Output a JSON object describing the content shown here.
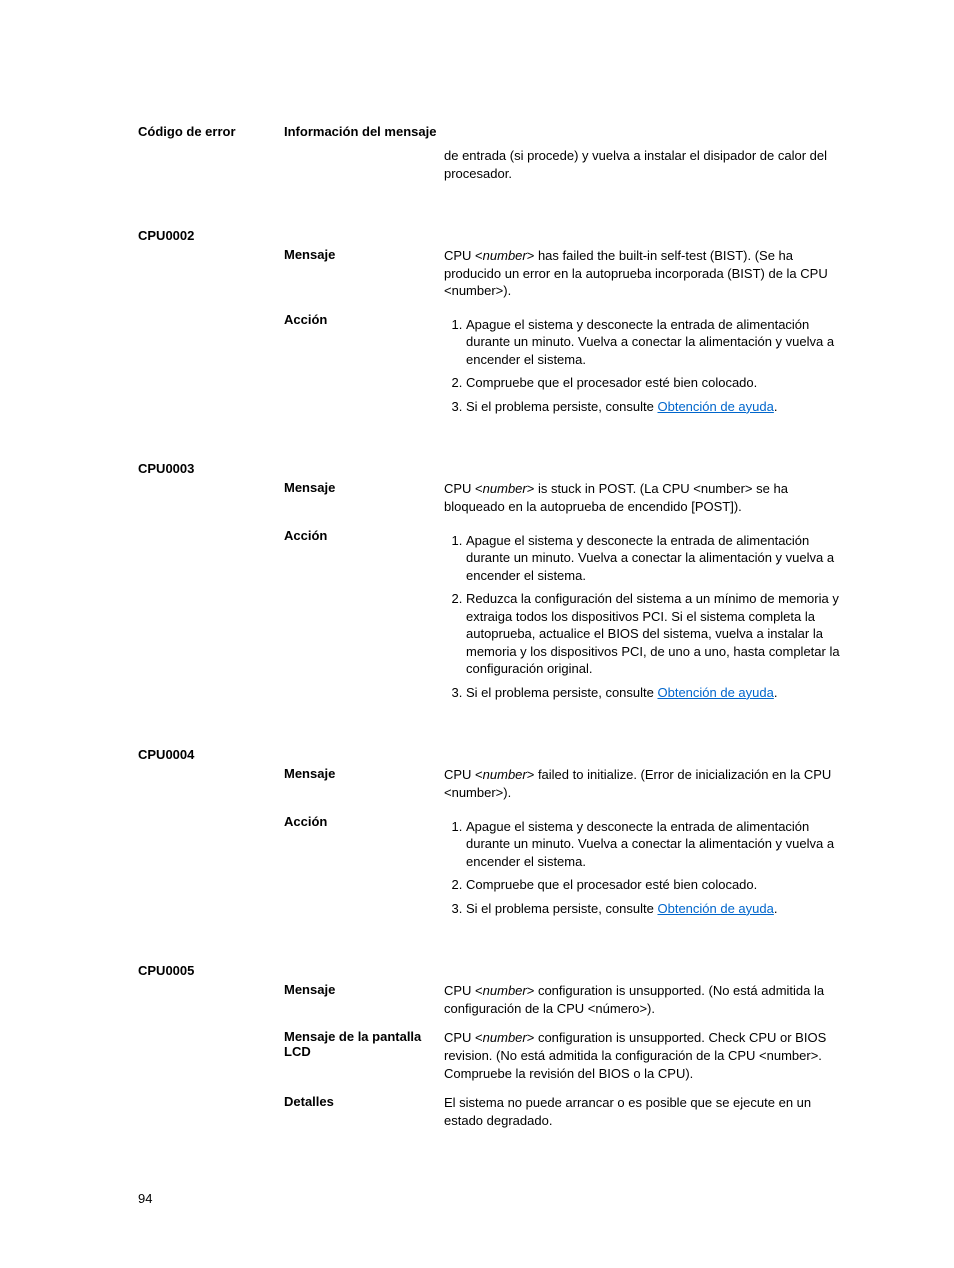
{
  "header": {
    "error_code": "Código de error",
    "message_info": "Información del mensaje"
  },
  "labels": {
    "mensaje": "Mensaje",
    "accion": "Acción",
    "lcd": "Mensaje de la pantalla LCD",
    "detalles": "Detalles"
  },
  "trailing": "de entrada (si procede) y vuelva a instalar el disipador de calor del procesador.",
  "help_link": "Obtención de ayuda",
  "help_prefix": "Si el problema persiste, consulte ",
  "period": ".",
  "cpu0002": {
    "code": "CPU0002",
    "msg_pre": "CPU <",
    "msg_num": "number",
    "msg_post": "> has failed the built-in self-test (BIST). (Se ha producido un error en la autoprueba incorporada (BIST) de la CPU <number>).",
    "a1": "Apague el sistema y desconecte la entrada de alimentación durante un minuto. Vuelva a conectar la alimentación y vuelva a encender el sistema.",
    "a2": "Compruebe que el procesador esté bien colocado."
  },
  "cpu0003": {
    "code": "CPU0003",
    "msg_pre": "CPU <",
    "msg_num": "number",
    "msg_post": "> is stuck in POST. (La CPU <number> se ha bloqueado en la autoprueba de encendido [POST]).",
    "a1": "Apague el sistema y desconecte la entrada de alimentación durante un minuto. Vuelva a conectar la alimentación y vuelva a encender el sistema.",
    "a2": "Reduzca la configuración del sistema a un mínimo de memoria y extraiga todos los dispositivos PCI. Si el sistema completa la autoprueba, actualice el BIOS del sistema, vuelva a instalar la memoria y los dispositivos PCI, de uno a uno, hasta completar la configuración original."
  },
  "cpu0004": {
    "code": "CPU0004",
    "msg_pre": "CPU <",
    "msg_num": "number",
    "msg_post": "> failed to initialize. (Error de inicialización en la CPU <number>).",
    "a1": "Apague el sistema y desconecte la entrada de alimentación durante un minuto. Vuelva a conectar la alimentación y vuelva a encender el sistema.",
    "a2": "Compruebe que el procesador esté bien colocado."
  },
  "cpu0005": {
    "code": "CPU0005",
    "msg_pre": "CPU <",
    "msg_num": "number",
    "msg_post": "> configuration is unsupported. (No está admitida la configuración de la CPU <número>).",
    "lcd_pre": "CPU <",
    "lcd_num": "number",
    "lcd_post": "> configuration is unsupported. Check CPU or BIOS revision. (No está admitida la configuración de la CPU <number>. Compruebe la revisión del BIOS o la CPU).",
    "detalles": "El sistema no puede arrancar o es posible que se ejecute en un estado degradado."
  },
  "page_number": "94"
}
